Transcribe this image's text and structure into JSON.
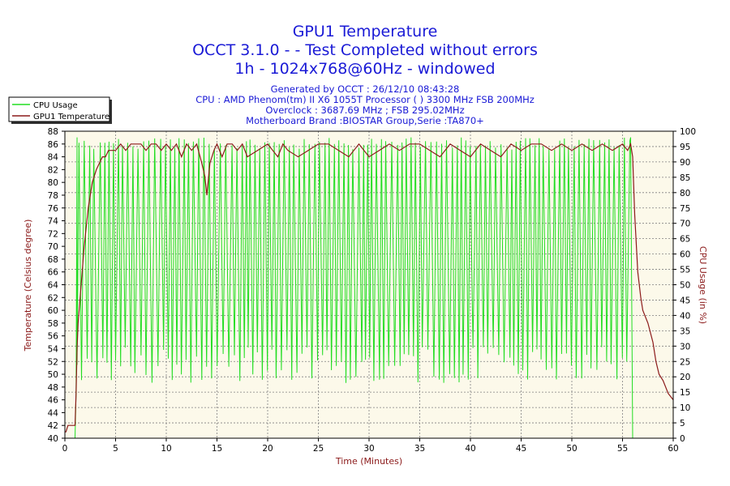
{
  "window": {
    "title_lines": [
      "GPU1 Temperature",
      "OCCT 3.1.0 -  - Test Completed without errors",
      "1h - 1024x768@60Hz - windowed"
    ],
    "meta_lines": [
      "Generated by OCCT : 26/12/10 08:43:28",
      "CPU : AMD Phenom(tm) II X6 1055T Processor (  ) 3300 MHz FSB 200MHz",
      "Overclock : 3687.69 MHz ; FSB 295.02MHz",
      "Motherboard Brand :BIOSTAR Group,Serie :TA870+"
    ]
  },
  "colors": {
    "temperature": "#8b1a1a",
    "cpu_usage": "#22dd22",
    "plot_background": "#fcf9ea",
    "grid": "#808080",
    "title": "#1a1ad6",
    "axis_label": "#8b1a1a"
  },
  "chart_data": {
    "type": "line",
    "title": "GPU1 Temperature",
    "xlabel": "Time (Minutes)",
    "ylabel_left": "Temperature (Celsius degree)",
    "ylabel_right": "CPU Usage (in %)",
    "xlim": [
      0,
      60
    ],
    "ylim_left": [
      40,
      88
    ],
    "ylim_right": [
      0,
      100
    ],
    "x_ticks": [
      0,
      5,
      10,
      15,
      20,
      25,
      30,
      35,
      40,
      45,
      50,
      55,
      60
    ],
    "y_left_ticks": [
      40,
      42,
      44,
      46,
      48,
      50,
      52,
      54,
      56,
      58,
      60,
      62,
      64,
      66,
      68,
      70,
      72,
      74,
      76,
      78,
      80,
      82,
      84,
      86,
      88
    ],
    "y_right_ticks": [
      0,
      5,
      10,
      15,
      20,
      25,
      30,
      35,
      40,
      45,
      50,
      55,
      60,
      65,
      70,
      75,
      80,
      85,
      90,
      95,
      100
    ],
    "grid": true,
    "legend_position": "top-left",
    "legend": [
      "CPU Usage",
      "GPU1 Temperature"
    ],
    "series": [
      {
        "name": "GPU1 Temperature",
        "axis": "left",
        "x": [
          0,
          0.1,
          0.3,
          0.6,
          0.8,
          1.0,
          1.1,
          1.2,
          1.3,
          1.5,
          1.7,
          1.9,
          2.1,
          2.3,
          2.5,
          2.7,
          2.9,
          3.1,
          3.4,
          3.7,
          4.0,
          4.3,
          4.6,
          5.0,
          5.5,
          6.0,
          6.5,
          7.0,
          7.5,
          8.0,
          8.5,
          9.0,
          9.5,
          10.0,
          10.5,
          11.0,
          11.5,
          12.0,
          12.5,
          13.0,
          13.5,
          13.8,
          14.0,
          14.3,
          14.7,
          15.0,
          15.5,
          16.0,
          16.5,
          17.0,
          17.5,
          18.0,
          19.0,
          20.0,
          21.0,
          21.5,
          22.0,
          23.0,
          24.0,
          25.0,
          26.0,
          27.0,
          28.0,
          29.0,
          30.0,
          31.0,
          32.0,
          33.0,
          34.0,
          35.0,
          36.0,
          37.0,
          38.0,
          39.0,
          40.0,
          41.0,
          42.0,
          43.0,
          44.0,
          45.0,
          46.0,
          47.0,
          48.0,
          49.0,
          50.0,
          51.0,
          52.0,
          53.0,
          54.0,
          55.0,
          55.5,
          55.8,
          56.0,
          56.2,
          56.5,
          56.8,
          57.0,
          57.5,
          58.0,
          58.3,
          58.6,
          59.0,
          59.5,
          60.0
        ],
        "values": [
          41,
          41,
          42,
          42,
          42,
          42,
          47,
          54,
          58,
          62,
          66,
          70,
          73,
          76,
          78,
          80,
          81,
          82,
          83,
          84,
          84,
          85,
          85,
          85,
          86,
          85,
          86,
          86,
          86,
          85,
          86,
          86,
          85,
          86,
          85,
          86,
          84,
          86,
          85,
          86,
          83,
          81,
          78,
          83,
          85,
          86,
          84,
          86,
          86,
          85,
          86,
          84,
          85,
          86,
          84,
          86,
          85,
          84,
          85,
          86,
          86,
          85,
          84,
          86,
          84,
          85,
          86,
          85,
          86,
          86,
          85,
          84,
          86,
          85,
          84,
          86,
          85,
          84,
          86,
          85,
          86,
          86,
          85,
          86,
          85,
          86,
          85,
          86,
          85,
          86,
          85,
          86,
          84,
          75,
          66,
          62,
          60,
          58,
          55,
          52,
          50,
          49,
          47,
          46
        ]
      },
      {
        "name": "CPU Usage",
        "axis": "right",
        "pattern": "oscillating between approximately 20% and 98% from 1.2 to 55.8 minutes",
        "x": [
          0,
          1.0,
          1.1,
          1.2
        ],
        "values": [
          0,
          0,
          15,
          98
        ],
        "oscillation": {
          "start": 1.2,
          "end": 55.8,
          "low": 20,
          "high": 98,
          "period_minutes": 0.5
        },
        "tail_x": [
          55.8,
          56.0,
          56.1,
          60
        ],
        "tail_values": [
          98,
          0,
          0,
          0
        ]
      }
    ]
  }
}
